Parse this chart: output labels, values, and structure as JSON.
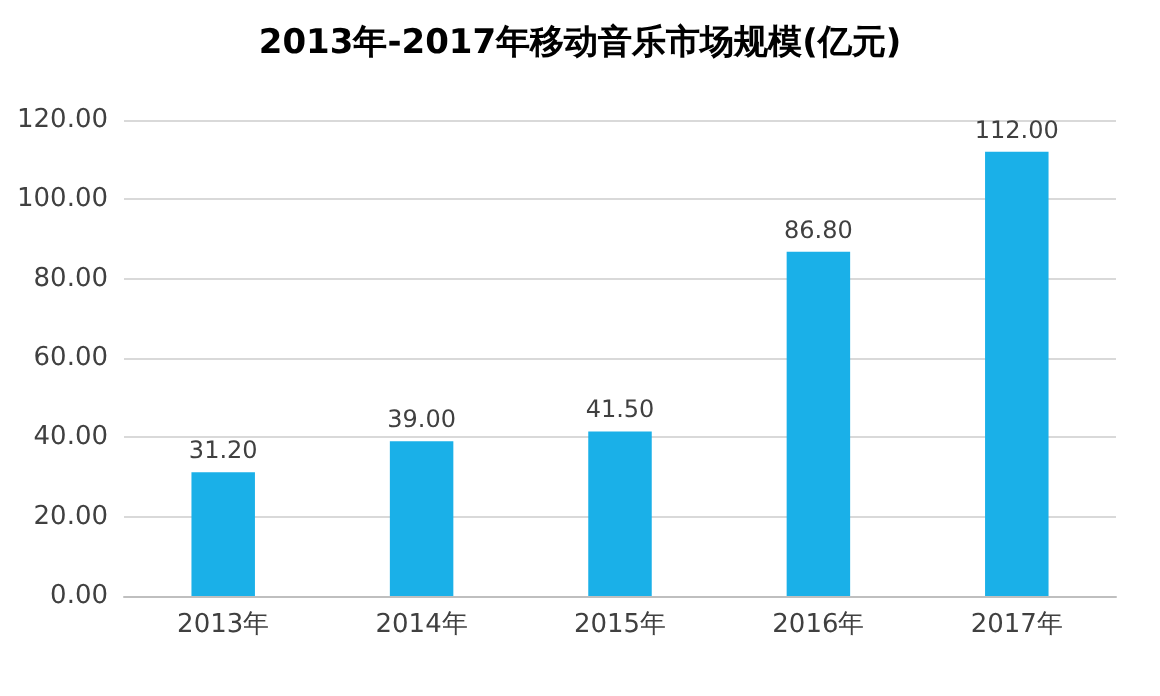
{
  "chart_data": {
    "type": "bar",
    "title": "2013年-2017年移动音乐市场规模(亿元)",
    "categories": [
      "2013年",
      "2014年",
      "2015年",
      "2016年",
      "2017年"
    ],
    "values": [
      31.2,
      39.0,
      41.5,
      86.8,
      112.0
    ],
    "value_labels": [
      "31.20",
      "39.00",
      "41.50",
      "86.80",
      "112.00"
    ],
    "color": "#1ab0e8",
    "ylim": [
      0,
      120
    ],
    "yticks": [
      {
        "value": 0,
        "label": "0.00"
      },
      {
        "value": 20,
        "label": "20.00"
      },
      {
        "value": 40,
        "label": "40.00"
      },
      {
        "value": 60,
        "label": "60.00"
      },
      {
        "value": 80,
        "label": "80.00"
      },
      {
        "value": 100,
        "label": "100.00"
      },
      {
        "value": 120,
        "label": "120.00"
      }
    ],
    "grid": "y"
  }
}
